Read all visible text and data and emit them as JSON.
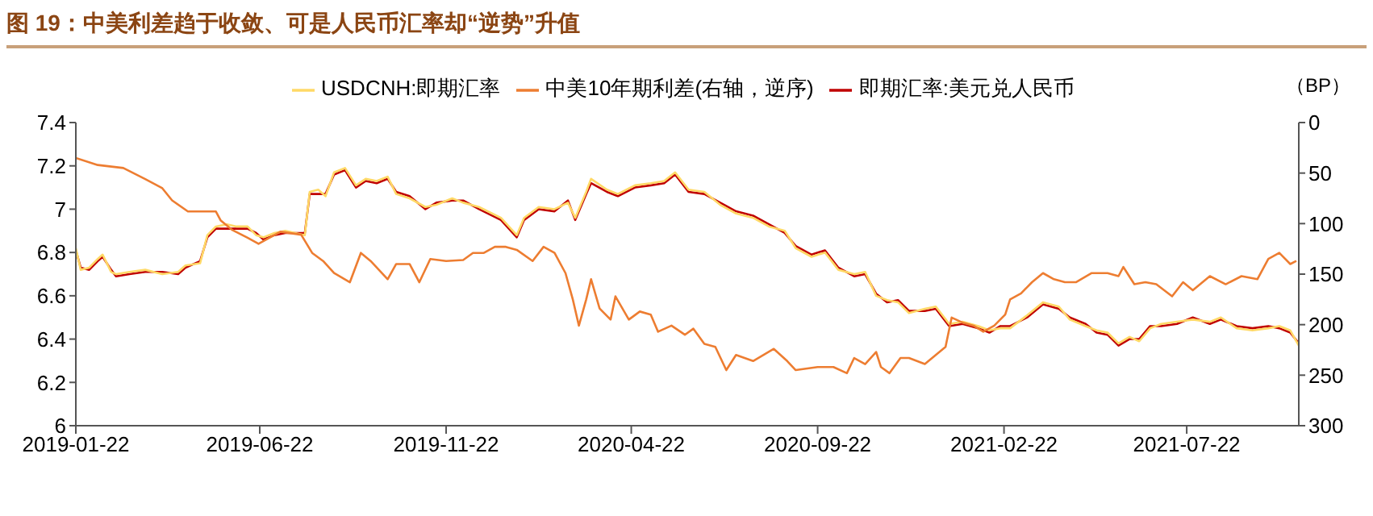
{
  "chart_data": {
    "type": "line",
    "title": "图 19：中美利差趋于收敛、可是人民币汇率却“逆势”升值",
    "y2label": "（BP）",
    "legend": "top",
    "xlim": [
      "2019-01-22",
      "2021-10-22"
    ],
    "xticks": [
      "2019-01-22",
      "2019-06-22",
      "2019-11-22",
      "2020-04-22",
      "2020-09-22",
      "2021-02-22",
      "2021-07-22"
    ],
    "ylim": [
      6,
      7.4
    ],
    "yticks": [
      6,
      6.2,
      6.4,
      6.6,
      6.8,
      7,
      7.2,
      7.4
    ],
    "y2lim": [
      300,
      0
    ],
    "y2ticks": [
      0,
      50,
      100,
      150,
      200,
      250,
      300
    ],
    "x": [
      "2019-01-22",
      "2019-01-26",
      "2019-02-02",
      "2019-02-09",
      "2019-02-13",
      "2019-02-20",
      "2019-02-24",
      "2019-03-07",
      "2019-03-20",
      "2019-04-03",
      "2019-04-16",
      "2019-04-22",
      "2019-05-04",
      "2019-05-10",
      "2019-05-17",
      "2019-05-26",
      "2019-06-03",
      "2019-06-12",
      "2019-06-19",
      "2019-06-25",
      "2019-07-04",
      "2019-07-13",
      "2019-07-29",
      "2019-08-02",
      "2019-08-09",
      "2019-08-15",
      "2019-08-22",
      "2019-08-31",
      "2019-09-09",
      "2019-09-17",
      "2019-09-26",
      "2019-10-05",
      "2019-10-12",
      "2019-10-23",
      "2019-11-05",
      "2019-11-14",
      "2019-11-27",
      "2019-12-06",
      "2019-12-19",
      "2020-01-06",
      "2020-01-19",
      "2020-01-25",
      "2020-02-06",
      "2020-02-19",
      "2020-03-01",
      "2020-03-07",
      "2020-03-16",
      "2020-03-20",
      "2020-04-02",
      "2020-04-11",
      "2020-04-25",
      "2020-05-08",
      "2020-05-19",
      "2020-05-28",
      "2020-06-08",
      "2020-06-21",
      "2020-07-04",
      "2020-07-17",
      "2020-07-31",
      "2020-08-13",
      "2020-08-26",
      "2020-09-04",
      "2020-09-17",
      "2020-09-28",
      "2020-10-09",
      "2020-10-22",
      "2020-10-31",
      "2020-11-09",
      "2020-11-18",
      "2020-11-27",
      "2020-12-06",
      "2020-12-19",
      "2020-12-28",
      "2021-01-08",
      "2021-01-19",
      "2021-02-01",
      "2021-02-10",
      "2021-02-19",
      "2021-02-27",
      "2021-03-13",
      "2021-03-26",
      "2021-04-08",
      "2021-04-17",
      "2021-04-30",
      "2021-05-09",
      "2021-05-18",
      "2021-05-27",
      "2021-06-05",
      "2021-06-13",
      "2021-06-22",
      "2021-07-01",
      "2021-07-14",
      "2021-07-27",
      "2021-08-10",
      "2021-08-19",
      "2021-09-01",
      "2021-09-14",
      "2021-09-27",
      "2021-10-06",
      "2021-10-15",
      "2021-10-22"
    ],
    "series": [
      {
        "name": "即期汇率:美元兑人民币",
        "color": "#c00000",
        "values": [
          6.81,
          6.73,
          6.72,
          6.76,
          6.78,
          6.72,
          6.69,
          6.7,
          6.71,
          6.71,
          6.7,
          6.73,
          6.76,
          6.87,
          6.91,
          6.91,
          6.91,
          6.91,
          6.89,
          6.86,
          6.88,
          6.89,
          6.89,
          7.07,
          7.07,
          7.07,
          7.16,
          7.18,
          7.1,
          7.13,
          7.12,
          7.14,
          7.08,
          7.06,
          7.0,
          7.03,
          7.04,
          7.04,
          7.0,
          6.95,
          6.87,
          6.95,
          7.0,
          6.99,
          7.04,
          6.95,
          7.07,
          7.12,
          7.08,
          7.06,
          7.1,
          7.11,
          7.12,
          7.16,
          7.08,
          7.07,
          7.03,
          6.99,
          6.97,
          6.93,
          6.89,
          6.83,
          6.79,
          6.81,
          6.73,
          6.69,
          6.7,
          6.61,
          6.57,
          6.58,
          6.53,
          6.53,
          6.54,
          6.46,
          6.47,
          6.45,
          6.43,
          6.46,
          6.46,
          6.5,
          6.56,
          6.54,
          6.5,
          6.47,
          6.43,
          6.42,
          6.37,
          6.4,
          6.4,
          6.46,
          6.46,
          6.47,
          6.5,
          6.47,
          6.49,
          6.46,
          6.45,
          6.46,
          6.45,
          6.43,
          6.38
        ]
      },
      {
        "name": "USDCNH:即期汇率",
        "color": "#ffd966",
        "values": [
          6.82,
          6.72,
          6.73,
          6.77,
          6.79,
          6.71,
          6.7,
          6.71,
          6.72,
          6.7,
          6.71,
          6.74,
          6.75,
          6.88,
          6.92,
          6.93,
          6.92,
          6.92,
          6.88,
          6.87,
          6.89,
          6.9,
          6.88,
          7.08,
          7.09,
          7.06,
          7.17,
          7.19,
          7.11,
          7.14,
          7.13,
          7.15,
          7.07,
          7.05,
          7.01,
          7.02,
          7.05,
          7.03,
          7.01,
          6.96,
          6.88,
          6.96,
          7.01,
          7.0,
          7.03,
          6.96,
          7.08,
          7.14,
          7.09,
          7.07,
          7.11,
          7.12,
          7.13,
          7.17,
          7.09,
          7.08,
          7.02,
          6.98,
          6.96,
          6.92,
          6.9,
          6.82,
          6.78,
          6.8,
          6.72,
          6.7,
          6.71,
          6.6,
          6.58,
          6.57,
          6.52,
          6.54,
          6.55,
          6.47,
          6.48,
          6.46,
          6.44,
          6.45,
          6.45,
          6.51,
          6.57,
          6.55,
          6.49,
          6.46,
          6.44,
          6.43,
          6.38,
          6.41,
          6.39,
          6.45,
          6.47,
          6.48,
          6.49,
          6.48,
          6.5,
          6.45,
          6.44,
          6.45,
          6.46,
          6.44,
          6.37
        ]
      },
      {
        "name": "中美10年期利差(右轴，逆序)",
        "color": "#ed7d31",
        "axis": "y2",
        "x": [
          "2019-01-22",
          "2019-02-09",
          "2019-03-02",
          "2019-03-20",
          "2019-04-03",
          "2019-04-11",
          "2019-04-24",
          "2019-05-07",
          "2019-05-17",
          "2019-05-21",
          "2019-05-30",
          "2019-06-12",
          "2019-06-21",
          "2019-06-30",
          "2019-07-09",
          "2019-07-26",
          "2019-08-04",
          "2019-08-13",
          "2019-08-22",
          "2019-09-04",
          "2019-09-13",
          "2019-09-21",
          "2019-10-05",
          "2019-10-12",
          "2019-10-23",
          "2019-10-31",
          "2019-11-09",
          "2019-11-22",
          "2019-12-06",
          "2019-12-14",
          "2019-12-23",
          "2020-01-01",
          "2020-01-10",
          "2020-01-19",
          "2020-02-01",
          "2020-02-10",
          "2020-02-19",
          "2020-02-28",
          "2020-03-05",
          "2020-03-10",
          "2020-03-16",
          "2020-03-20",
          "2020-03-27",
          "2020-04-05",
          "2020-04-09",
          "2020-04-20",
          "2020-04-29",
          "2020-05-08",
          "2020-05-14",
          "2020-05-25",
          "2020-06-05",
          "2020-06-12",
          "2020-06-21",
          "2020-06-30",
          "2020-07-09",
          "2020-07-17",
          "2020-07-31",
          "2020-08-17",
          "2020-08-28",
          "2020-09-04",
          "2020-09-22",
          "2020-10-05",
          "2020-10-16",
          "2020-10-22",
          "2020-10-31",
          "2020-11-09",
          "2020-11-13",
          "2020-11-20",
          "2020-11-29",
          "2020-12-06",
          "2020-12-19",
          "2020-12-28",
          "2021-01-05",
          "2021-01-10",
          "2021-01-19",
          "2021-01-28",
          "2021-02-05",
          "2021-02-14",
          "2021-02-23",
          "2021-02-27",
          "2021-03-08",
          "2021-03-17",
          "2021-03-26",
          "2021-04-04",
          "2021-04-13",
          "2021-04-22",
          "2021-05-05",
          "2021-05-18",
          "2021-05-27",
          "2021-05-31",
          "2021-06-09",
          "2021-06-18",
          "2021-06-27",
          "2021-07-10",
          "2021-07-19",
          "2021-07-27",
          "2021-08-10",
          "2021-08-23",
          "2021-09-05",
          "2021-09-18",
          "2021-09-27",
          "2021-10-06",
          "2021-10-15",
          "2021-10-20"
        ],
        "values": [
          35,
          42,
          45,
          56,
          65,
          77,
          88,
          88,
          88,
          97,
          106,
          114,
          120,
          114,
          108,
          111,
          129,
          137,
          149,
          158,
          129,
          137,
          155,
          140,
          140,
          158,
          135,
          137,
          136,
          129,
          129,
          123,
          123,
          126,
          137,
          123,
          129,
          149,
          175,
          201,
          175,
          155,
          184,
          195,
          172,
          195,
          187,
          190,
          207,
          201,
          210,
          204,
          219,
          222,
          245,
          230,
          236,
          224,
          236,
          245,
          242,
          242,
          248,
          233,
          239,
          227,
          242,
          248,
          233,
          233,
          239,
          230,
          222,
          193,
          198,
          201,
          207,
          201,
          190,
          175,
          169,
          158,
          149,
          155,
          158,
          158,
          149,
          149,
          152,
          143,
          160,
          158,
          160,
          172,
          158,
          166,
          152,
          160,
          152,
          155,
          135,
          129,
          140,
          137
        ]
      }
    ]
  }
}
